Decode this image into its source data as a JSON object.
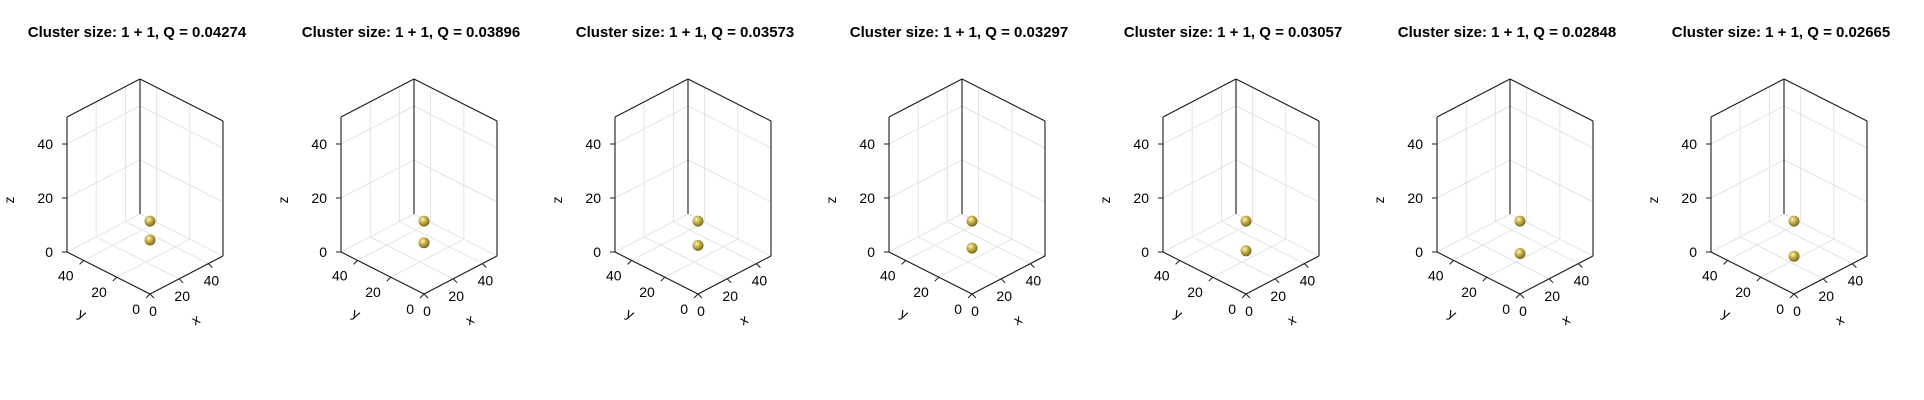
{
  "chart_data": [
    {
      "type": "scatter",
      "title": "Cluster size: 1 + 1, Q = 0.04274",
      "xlabel": "x",
      "ylabel": "y",
      "zlabel": "z",
      "xlim": [
        0,
        50
      ],
      "ylim": [
        0,
        50
      ],
      "zlim": [
        0,
        50
      ],
      "x_ticks": [
        "0",
        "20",
        "40"
      ],
      "y_ticks": [
        "0",
        "20",
        "40"
      ],
      "z_ticks": [
        "0",
        "20",
        "40"
      ],
      "grid": true,
      "marker_color": "#c8b24a",
      "points": [
        {
          "x": 0,
          "y": 0,
          "z": 27
        },
        {
          "x": 0,
          "y": 0,
          "z": 20
        }
      ]
    },
    {
      "type": "scatter",
      "title": "Cluster size: 1 + 1, Q = 0.03896",
      "xlabel": "x",
      "ylabel": "y",
      "zlabel": "z",
      "xlim": [
        0,
        50
      ],
      "ylim": [
        0,
        50
      ],
      "zlim": [
        0,
        50
      ],
      "x_ticks": [
        "0",
        "20",
        "40"
      ],
      "y_ticks": [
        "0",
        "20",
        "40"
      ],
      "z_ticks": [
        "0",
        "20",
        "40"
      ],
      "grid": true,
      "marker_color": "#c8b24a",
      "points": [
        {
          "x": 0,
          "y": 0,
          "z": 27
        },
        {
          "x": 0,
          "y": 0,
          "z": 19
        }
      ]
    },
    {
      "type": "scatter",
      "title": "Cluster size: 1 + 1, Q = 0.03573",
      "xlabel": "x",
      "ylabel": "y",
      "zlabel": "z",
      "xlim": [
        0,
        50
      ],
      "ylim": [
        0,
        50
      ],
      "zlim": [
        0,
        50
      ],
      "x_ticks": [
        "0",
        "20",
        "40"
      ],
      "y_ticks": [
        "0",
        "20",
        "40"
      ],
      "z_ticks": [
        "0",
        "20",
        "40"
      ],
      "grid": true,
      "marker_color": "#c8b24a",
      "points": [
        {
          "x": 0,
          "y": 0,
          "z": 27
        },
        {
          "x": 0,
          "y": 0,
          "z": 18
        }
      ]
    },
    {
      "type": "scatter",
      "title": "Cluster size: 1 + 1, Q = 0.03297",
      "xlabel": "x",
      "ylabel": "y",
      "zlabel": "z",
      "xlim": [
        0,
        50
      ],
      "ylim": [
        0,
        50
      ],
      "zlim": [
        0,
        50
      ],
      "x_ticks": [
        "0",
        "20",
        "40"
      ],
      "y_ticks": [
        "0",
        "20",
        "40"
      ],
      "z_ticks": [
        "0",
        "20",
        "40"
      ],
      "grid": true,
      "marker_color": "#c8b24a",
      "points": [
        {
          "x": 0,
          "y": 0,
          "z": 27
        },
        {
          "x": 0,
          "y": 0,
          "z": 17
        }
      ]
    },
    {
      "type": "scatter",
      "title": "Cluster size: 1 + 1, Q = 0.03057",
      "xlabel": "x",
      "ylabel": "y",
      "zlabel": "z",
      "xlim": [
        0,
        50
      ],
      "ylim": [
        0,
        50
      ],
      "zlim": [
        0,
        50
      ],
      "x_ticks": [
        "0",
        "20",
        "40"
      ],
      "y_ticks": [
        "0",
        "20",
        "40"
      ],
      "z_ticks": [
        "0",
        "20",
        "40"
      ],
      "grid": true,
      "marker_color": "#c8b24a",
      "points": [
        {
          "x": 0,
          "y": 0,
          "z": 27
        },
        {
          "x": 0,
          "y": 0,
          "z": 16
        }
      ]
    },
    {
      "type": "scatter",
      "title": "Cluster size: 1 + 1, Q = 0.02848",
      "xlabel": "x",
      "ylabel": "y",
      "zlabel": "z",
      "xlim": [
        0,
        50
      ],
      "ylim": [
        0,
        50
      ],
      "zlim": [
        0,
        50
      ],
      "x_ticks": [
        "0",
        "20",
        "40"
      ],
      "y_ticks": [
        "0",
        "20",
        "40"
      ],
      "z_ticks": [
        "0",
        "20",
        "40"
      ],
      "grid": true,
      "marker_color": "#c8b24a",
      "points": [
        {
          "x": 0,
          "y": 0,
          "z": 27
        },
        {
          "x": 0,
          "y": 0,
          "z": 15
        }
      ]
    },
    {
      "type": "scatter",
      "title": "Cluster size: 1 + 1, Q = 0.02665",
      "xlabel": "x",
      "ylabel": "y",
      "zlabel": "z",
      "xlim": [
        0,
        50
      ],
      "ylim": [
        0,
        50
      ],
      "zlim": [
        0,
        50
      ],
      "x_ticks": [
        "0",
        "20",
        "40"
      ],
      "y_ticks": [
        "0",
        "20",
        "40"
      ],
      "z_ticks": [
        "0",
        "20",
        "40"
      ],
      "grid": true,
      "marker_color": "#c8b24a",
      "points": [
        {
          "x": 0,
          "y": 0,
          "z": 27
        },
        {
          "x": 0,
          "y": 0,
          "z": 14
        }
      ]
    }
  ]
}
